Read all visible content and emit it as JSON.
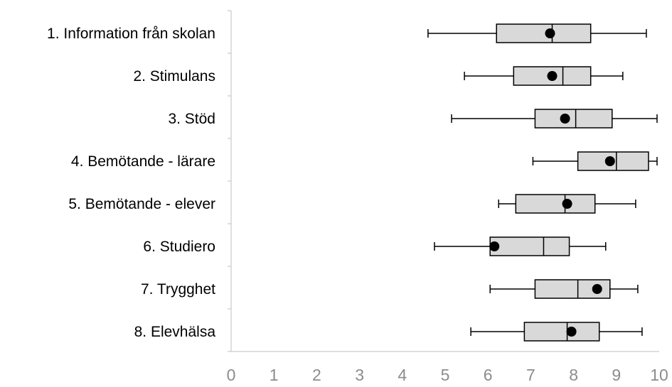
{
  "chart_data": {
    "type": "boxplot",
    "orientation": "horizontal",
    "title": "",
    "xlabel": "",
    "ylabel": "",
    "xlim": [
      0,
      10
    ],
    "x_ticks": [
      "0",
      "1",
      "2",
      "3",
      "4",
      "5",
      "6",
      "7",
      "8",
      "9",
      "10"
    ],
    "grid": false,
    "colors": {
      "box_fill": "#d9d9d9",
      "outline": "#000000",
      "axis": "#bfbfbf",
      "tick_text": "#8c8c8c"
    },
    "categories": [
      "1. Information från skolan",
      "2. Stimulans",
      "3. Stöd",
      "4. Bemötande - lärare",
      "5. Bemötande - elever",
      "6. Studiero",
      "7. Trygghet",
      "8. Elevhälsa"
    ],
    "boxes": [
      {
        "min": 4.6,
        "q1": 6.2,
        "median": 7.5,
        "q3": 8.4,
        "max": 9.7,
        "mean": 7.45
      },
      {
        "min": 5.45,
        "q1": 6.6,
        "median": 7.75,
        "q3": 8.4,
        "max": 9.15,
        "mean": 7.5
      },
      {
        "min": 5.15,
        "q1": 7.1,
        "median": 8.05,
        "q3": 8.9,
        "max": 9.95,
        "mean": 7.8
      },
      {
        "min": 7.05,
        "q1": 8.1,
        "median": 9.0,
        "q3": 9.75,
        "max": 9.95,
        "mean": 8.85
      },
      {
        "min": 6.25,
        "q1": 6.65,
        "median": 7.8,
        "q3": 8.5,
        "max": 9.45,
        "mean": 7.85
      },
      {
        "min": 4.75,
        "q1": 6.05,
        "median": 7.3,
        "q3": 7.9,
        "max": 8.75,
        "mean": 6.15
      },
      {
        "min": 6.05,
        "q1": 7.1,
        "median": 8.1,
        "q3": 8.85,
        "max": 9.5,
        "mean": 8.55
      },
      {
        "min": 5.6,
        "q1": 6.85,
        "median": 7.85,
        "q3": 8.6,
        "max": 9.6,
        "mean": 7.95
      }
    ]
  }
}
